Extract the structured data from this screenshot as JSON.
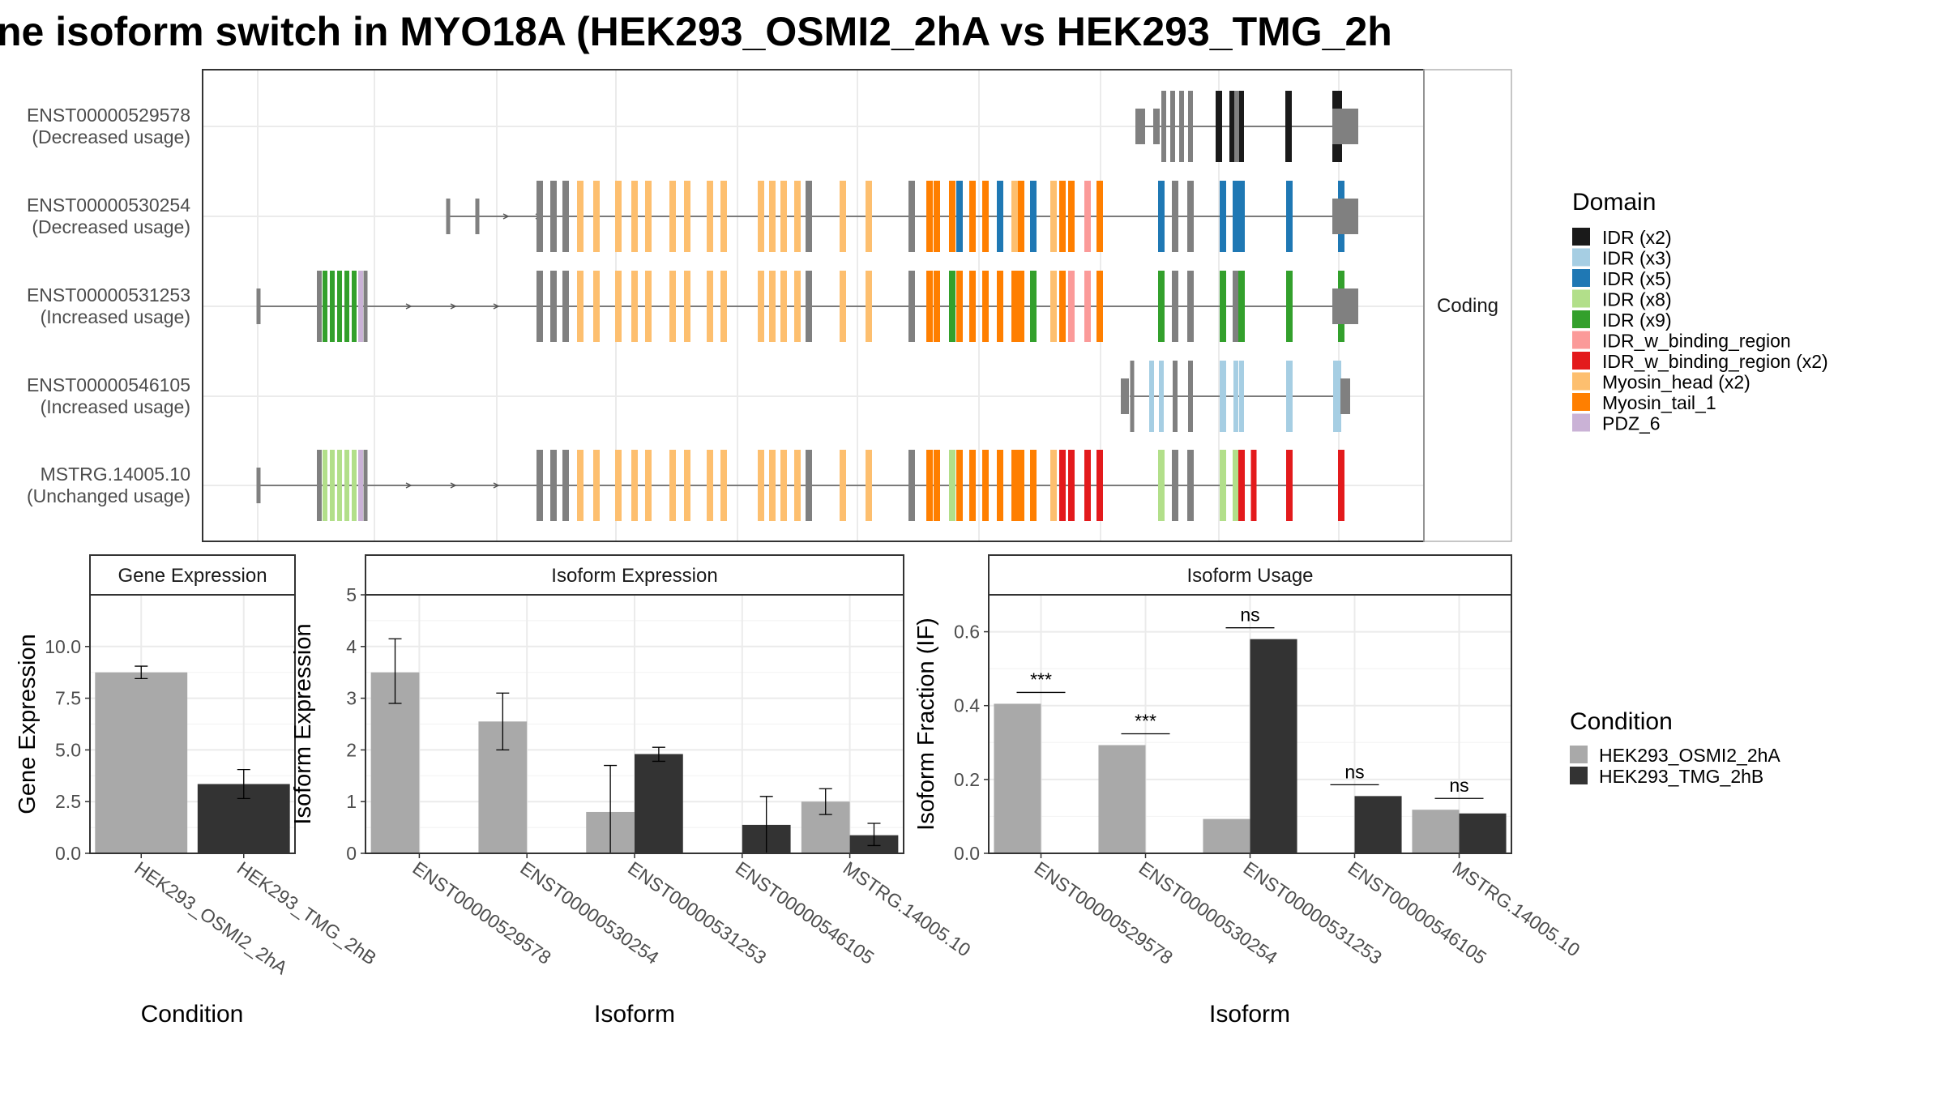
{
  "title": "ne isoform switch in MYO18A (HEK293_OSMI2_2hA vs HEK293_TMG_2h",
  "colors": {
    "IDR (x2)": "#1a1a1a",
    "IDR (x3)": "#a6cee3",
    "IDR (x5)": "#1f78b4",
    "IDR (x8)": "#b2df8a",
    "IDR (x9)": "#33a02c",
    "IDR_w_binding_region": "#fb9a99",
    "IDR_w_binding_region (x2)": "#e31a1c",
    "Myosin_head (x2)": "#fdbf6f",
    "Myosin_tail_1": "#ff7f00",
    "PDZ_6": "#cab2d6",
    "noncoding": "#808080",
    "cond_a": "#a9a9a9",
    "cond_b": "#333333"
  },
  "chart_data": [
    {
      "type": "gene-structure",
      "strip": "Coding",
      "isoforms": [
        {
          "id": "ENST00000529578",
          "usage": "(Decreased usage)"
        },
        {
          "id": "ENST00000530254",
          "usage": "(Decreased usage)"
        },
        {
          "id": "ENST00000531253",
          "usage": "(Increased usage)"
        },
        {
          "id": "ENST00000546105",
          "usage": "(Increased usage)"
        },
        {
          "id": "MSTRG.14005.10",
          "usage": "(Unchanged usage)"
        }
      ],
      "legend_title": "Domain",
      "legend": [
        "IDR (x2)",
        "IDR (x3)",
        "IDR (x5)",
        "IDR (x8)",
        "IDR (x9)",
        "IDR_w_binding_region",
        "IDR_w_binding_region (x2)",
        "Myosin_head (x2)",
        "Myosin_tail_1",
        "PDZ_6"
      ]
    },
    {
      "type": "bar",
      "title": "Gene Expression",
      "xlabel": "Condition",
      "ylabel": "Gene Expression",
      "ylim": [
        0,
        12.5
      ],
      "yticks": [
        "0.0",
        "2.5",
        "5.0",
        "7.5",
        "10.0"
      ],
      "categories": [
        "HEK293_OSMI2_2hA",
        "HEK293_TMG_2hB"
      ],
      "values": [
        8.75,
        3.35
      ],
      "err_low": [
        8.45,
        2.65
      ],
      "err_high": [
        9.05,
        4.05
      ]
    },
    {
      "type": "bar",
      "title": "Isoform Expression",
      "xlabel": "Isoform",
      "ylabel": "Isoform Expression",
      "ylim": [
        0,
        5
      ],
      "yticks": [
        "0",
        "1",
        "2",
        "3",
        "4",
        "5"
      ],
      "categories": [
        "ENST00000529578",
        "ENST00000530254",
        "ENST00000531253",
        "ENST00000546105",
        "MSTRG.14005.10"
      ],
      "series": [
        {
          "values": [
            3.5,
            2.55,
            0.8,
            0.0,
            1.0
          ],
          "err_low": [
            2.9,
            2.0,
            0.0,
            0.0,
            0.75
          ],
          "err_high": [
            4.15,
            3.1,
            1.7,
            0.0,
            1.25
          ]
        },
        {
          "values": [
            0.0,
            0.0,
            1.92,
            0.55,
            0.35
          ],
          "err_low": [
            0.0,
            0.0,
            1.78,
            0.0,
            0.15
          ],
          "err_high": [
            0.0,
            0.0,
            2.05,
            1.1,
            0.58
          ]
        }
      ]
    },
    {
      "type": "bar",
      "title": "Isoform Usage",
      "xlabel": "Isoform",
      "ylabel": "Isoform Fraction (IF)",
      "ylim": [
        0,
        0.7
      ],
      "yticks": [
        "0.0",
        "0.2",
        "0.4",
        "0.6"
      ],
      "categories": [
        "ENST00000529578",
        "ENST00000530254",
        "ENST00000531253",
        "ENST00000546105",
        "MSTRG.14005.10"
      ],
      "series": [
        {
          "values": [
            0.405,
            0.293,
            0.093,
            0.0,
            0.118
          ]
        },
        {
          "values": [
            0.0,
            0.0,
            0.58,
            0.155,
            0.108
          ]
        }
      ],
      "significance": [
        "***",
        "***",
        "ns",
        "ns",
        "ns"
      ],
      "legend_title": "Condition",
      "legend": [
        "HEK293_OSMI2_2hA",
        "HEK293_TMG_2hB"
      ]
    }
  ]
}
